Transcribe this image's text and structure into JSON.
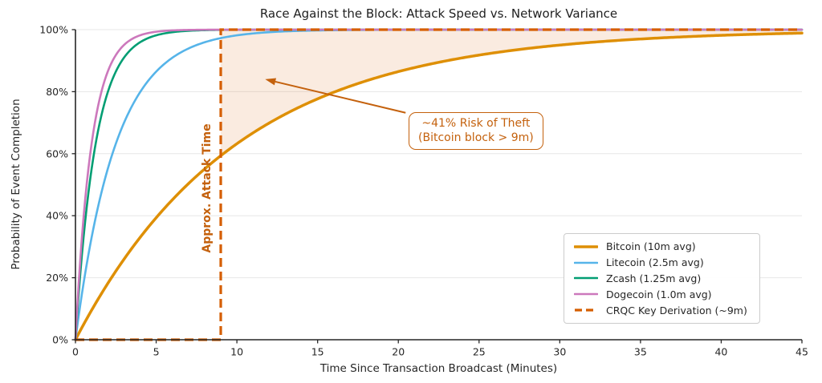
{
  "chart_data": {
    "type": "line",
    "title": "Race Against the Block: Attack Speed vs. Network Variance",
    "xlabel": "Time Since Transaction Broadcast (Minutes)",
    "ylabel": "Probability of Event Completion",
    "xlim": [
      0,
      45
    ],
    "ylim_pct": [
      0,
      100
    ],
    "x_ticks": [
      0,
      5,
      10,
      15,
      20,
      25,
      30,
      35,
      40,
      45
    ],
    "y_ticks_pct": [
      0,
      20,
      40,
      60,
      80,
      100
    ],
    "y_tick_labels": [
      "0%",
      "20%",
      "40%",
      "60%",
      "80%",
      "100%"
    ],
    "grid": "horizontal",
    "model": "P(t) = 1 - exp(-t/mean) exponential CDF; CRQC is a step function at 9 minutes",
    "series": [
      {
        "name": "Bitcoin (10m avg)",
        "kind": "exp_cdf",
        "mean_minutes": 10,
        "color": "#de8f05",
        "line_width": 3.5,
        "dash": ""
      },
      {
        "name": "Litecoin (2.5m avg)",
        "kind": "exp_cdf",
        "mean_minutes": 2.5,
        "color": "#56b4e9",
        "line_width": 2.6,
        "dash": ""
      },
      {
        "name": "Zcash (1.25m avg)",
        "kind": "exp_cdf",
        "mean_minutes": 1.25,
        "color": "#029e73",
        "line_width": 2.6,
        "dash": ""
      },
      {
        "name": "Dogecoin (1.0m avg)",
        "kind": "exp_cdf",
        "mean_minutes": 1.0,
        "color": "#cc78bc",
        "line_width": 2.6,
        "dash": ""
      },
      {
        "name": "CRQC Key Derivation (~9m)",
        "kind": "step",
        "step_at_minutes": 9,
        "color": "#d55e00",
        "line_width": 3.2,
        "dash": "11,6"
      }
    ],
    "key_values": {
      "bitcoin_completion_at_9m_pct": 59,
      "risk_of_theft_pct": 41,
      "attack_time_minutes": 9
    },
    "shaded_region": {
      "between": "Bitcoin curve and 100% line",
      "from_minute": 9,
      "to_minute": 45,
      "fill": "#d55e00",
      "opacity": 0.12
    },
    "attack_time": {
      "label": "Approx. Attack Time",
      "minute": 9,
      "color": "#c4610d"
    },
    "risk_annotation": {
      "line1": "~41% Risk of Theft",
      "line2": "(Bitcoin block > 9m)",
      "color": "#c4610d",
      "arrow_tip_data": [
        11.75,
        84.0
      ],
      "arrow_tail_data": [
        20.45,
        73.2
      ]
    },
    "legend_position": "lower right",
    "colors": {
      "axis": "#262626",
      "grid": "#e7e7e7",
      "title": "#1f1f1f",
      "annotation_orange": "#c4610d"
    }
  }
}
